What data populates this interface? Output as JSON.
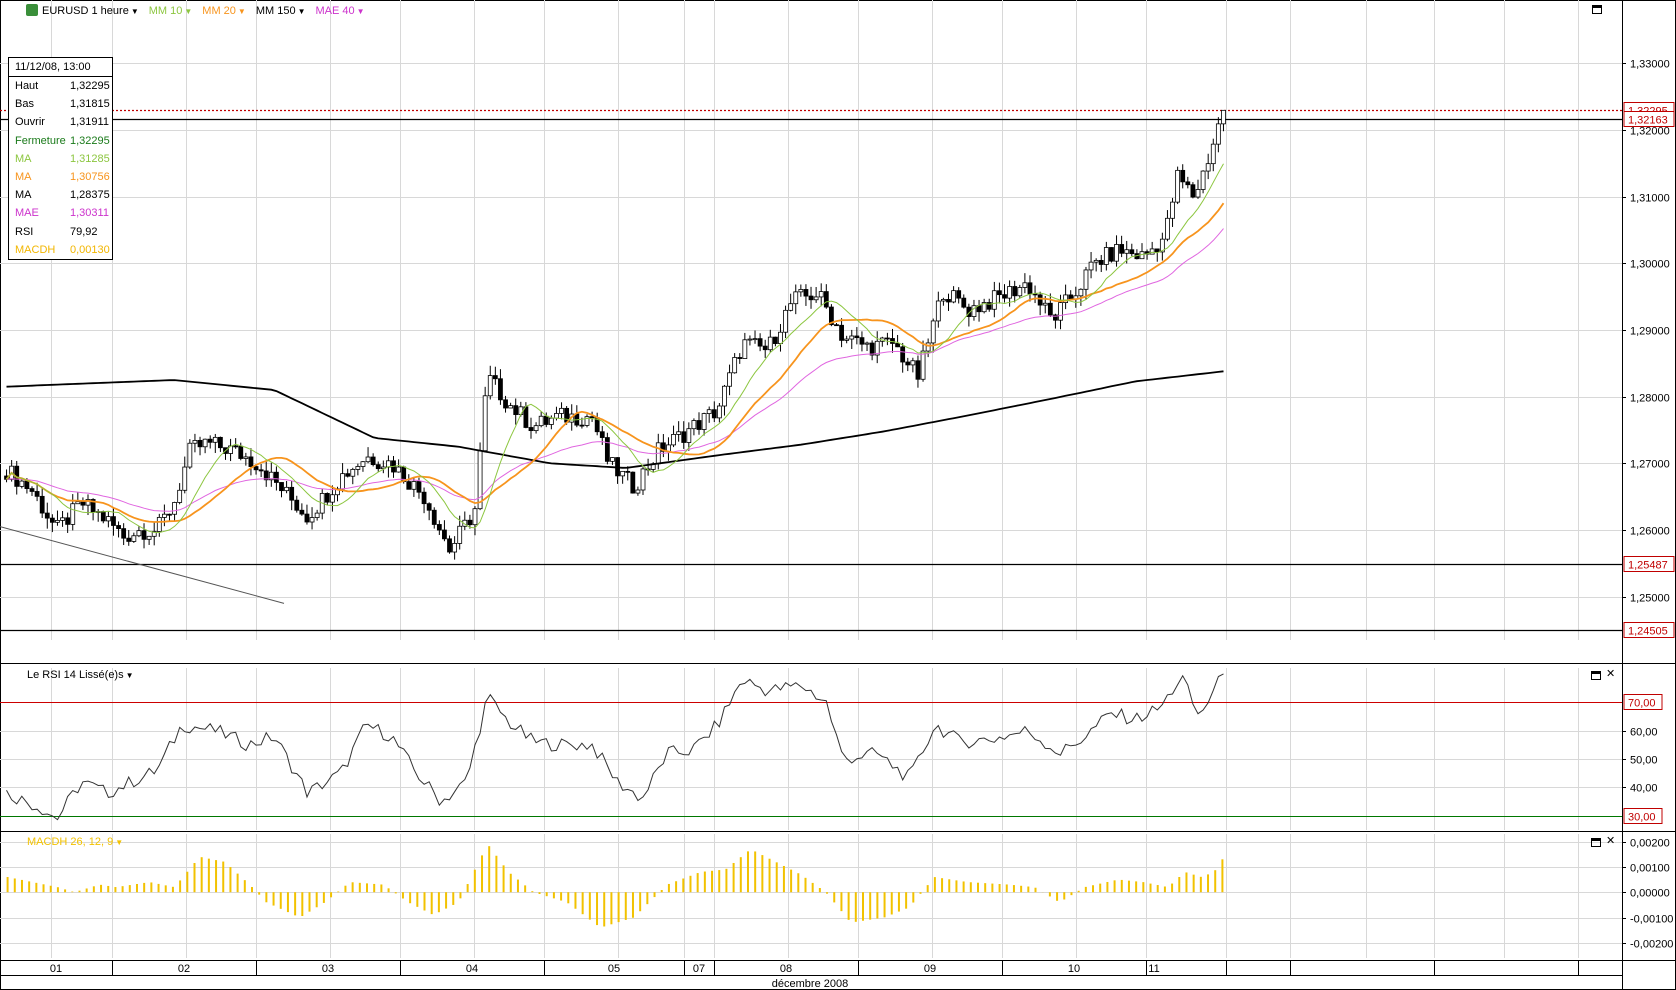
{
  "toolbar": {
    "symbol": "EURUSD 1 heure",
    "indicators": [
      {
        "label": "MM 10",
        "color": "#8cc63f"
      },
      {
        "label": "MM 20",
        "color": "#f7941d"
      },
      {
        "label": "MM 150",
        "color": "#000000"
      },
      {
        "label": "MAE 40",
        "color": "#cc33cc"
      }
    ]
  },
  "infobox": {
    "header": "11/12/08, 13:00",
    "rows": [
      {
        "k": "Haut",
        "v": "1,32295",
        "color": "#000000"
      },
      {
        "k": "Bas",
        "v": "1,31815",
        "color": "#000000"
      },
      {
        "k": "Ouvrir",
        "v": "1,31911",
        "color": "#000000"
      },
      {
        "k": "Fermeture",
        "v": "1,32295",
        "color": "#1a7a1a"
      },
      {
        "k": "MA",
        "v": "1,31285",
        "color": "#8cc63f"
      },
      {
        "k": "MA",
        "v": "1,30756",
        "color": "#f7941d"
      },
      {
        "k": "MA",
        "v": "1,28375",
        "color": "#000000"
      },
      {
        "k": "MAE",
        "v": "1,30311",
        "color": "#cc33cc"
      },
      {
        "k": "RSI",
        "v": "79,92",
        "color": "#000000"
      },
      {
        "k": "MACDH",
        "v": "0,00130",
        "color": "#f2b600"
      }
    ]
  },
  "rsi_panel": {
    "label": "Le RSI 14 Lissé(e)s"
  },
  "macd_panel": {
    "label": "MACDH 26, 12, 9"
  },
  "x_axis": {
    "day_labels": [
      "01",
      "02",
      "03",
      "04",
      "05",
      "07",
      "08",
      "09",
      "10",
      "11"
    ],
    "month_label": "décembre 2008"
  },
  "chart_data": [
    {
      "type": "candlestick",
      "title": "EURUSD 1 heure",
      "y_range": [
        1.2435,
        1.3395
      ],
      "y_ticks": [
        "1,33000",
        "1,32000",
        "1,31000",
        "1,30000",
        "1,29000",
        "1,28000",
        "1,27000",
        "1,26000",
        "1,25000"
      ],
      "price_flags": [
        {
          "label": "1,32295",
          "value": 1.32295,
          "style": "dotted",
          "color": "#c00000"
        },
        {
          "label": "1,32163",
          "value": 1.32163,
          "style": "solid",
          "color": "#c00000"
        },
        {
          "label": "1,25487",
          "value": 1.25487,
          "style": "solid",
          "color": "#c00000"
        },
        {
          "label": "1,24505",
          "value": 1.24505,
          "style": "solid",
          "color": "#c00000"
        }
      ],
      "overlays": [
        {
          "name": "MM 10",
          "color": "#8cc63f"
        },
        {
          "name": "MM 20",
          "color": "#f7941d"
        },
        {
          "name": "MM 150",
          "color": "#000000"
        },
        {
          "name": "MAE 40",
          "color": "#e066e0"
        }
      ],
      "trendline": {
        "from": [
          "01",
          1.2605
        ],
        "to": [
          "03",
          1.249
        ]
      },
      "anchors": [
        {
          "day": 0.0,
          "close": 1.269
        },
        {
          "day": 0.3,
          "close": 1.266
        },
        {
          "day": 0.6,
          "close": 1.26
        },
        {
          "day": 0.9,
          "close": 1.264
        },
        {
          "day": 1.2,
          "close": 1.2615
        },
        {
          "day": 1.4,
          "close": 1.259
        },
        {
          "day": 1.6,
          "close": 1.26
        },
        {
          "day": 1.8,
          "close": 1.26
        },
        {
          "day": 2.0,
          "close": 1.264
        },
        {
          "day": 2.2,
          "close": 1.272
        },
        {
          "day": 2.4,
          "close": 1.273
        },
        {
          "day": 2.7,
          "close": 1.272
        },
        {
          "day": 3.0,
          "close": 1.27
        },
        {
          "day": 3.3,
          "close": 1.266
        },
        {
          "day": 3.6,
          "close": 1.262
        },
        {
          "day": 4.0,
          "close": 1.268
        },
        {
          "day": 4.3,
          "close": 1.271
        },
        {
          "day": 4.6,
          "close": 1.27
        },
        {
          "day": 5.0,
          "close": 1.265
        },
        {
          "day": 5.3,
          "close": 1.257
        },
        {
          "day": 5.6,
          "close": 1.263
        },
        {
          "day": 5.75,
          "close": 1.283
        },
        {
          "day": 6.0,
          "close": 1.279
        },
        {
          "day": 6.3,
          "close": 1.2755
        },
        {
          "day": 6.6,
          "close": 1.277
        },
        {
          "day": 7.0,
          "close": 1.277
        },
        {
          "day": 7.2,
          "close": 1.27
        },
        {
          "day": 7.5,
          "close": 1.2665
        },
        {
          "day": 7.8,
          "close": 1.272
        },
        {
          "day": 8.1,
          "close": 1.2745
        },
        {
          "day": 8.5,
          "close": 1.278
        },
        {
          "day": 8.8,
          "close": 1.288
        },
        {
          "day": 9.1,
          "close": 1.287
        },
        {
          "day": 9.4,
          "close": 1.2945
        },
        {
          "day": 9.7,
          "close": 1.2955
        },
        {
          "day": 10.0,
          "close": 1.289
        },
        {
          "day": 10.3,
          "close": 1.2875
        },
        {
          "day": 10.6,
          "close": 1.288
        },
        {
          "day": 10.9,
          "close": 1.283
        },
        {
          "day": 11.2,
          "close": 1.296
        },
        {
          "day": 11.5,
          "close": 1.293
        },
        {
          "day": 11.8,
          "close": 1.2945
        },
        {
          "day": 12.2,
          "close": 1.297
        },
        {
          "day": 12.5,
          "close": 1.2915
        },
        {
          "day": 12.8,
          "close": 1.296
        },
        {
          "day": 13.0,
          "close": 1.3
        },
        {
          "day": 13.3,
          "close": 1.302
        },
        {
          "day": 13.6,
          "close": 1.301
        },
        {
          "day": 13.85,
          "close": 1.304
        },
        {
          "day": 14.0,
          "close": 1.313
        },
        {
          "day": 14.2,
          "close": 1.31
        },
        {
          "day": 14.35,
          "close": 1.315
        },
        {
          "day": 14.55,
          "close": 1.323
        }
      ]
    },
    {
      "type": "line",
      "title": "Le RSI 14 Lissé(e)s",
      "y_range": [
        25,
        82
      ],
      "y_ticks": [
        "60,00",
        "50,00",
        "40,00"
      ],
      "levels": [
        {
          "label": "70,00",
          "value": 70,
          "color": "#cc0000"
        },
        {
          "label": "30,00",
          "value": 30,
          "color": "#007700"
        }
      ],
      "last_value": 79.92,
      "anchors": [
        {
          "day": 0.0,
          "rsi": 38
        },
        {
          "day": 0.4,
          "rsi": 33
        },
        {
          "day": 0.6,
          "rsi": 29
        },
        {
          "day": 0.9,
          "rsi": 42
        },
        {
          "day": 1.2,
          "rsi": 38
        },
        {
          "day": 1.5,
          "rsi": 42
        },
        {
          "day": 1.8,
          "rsi": 46
        },
        {
          "day": 2.1,
          "rsi": 62
        },
        {
          "day": 2.5,
          "rsi": 60
        },
        {
          "day": 2.9,
          "rsi": 55
        },
        {
          "day": 3.2,
          "rsi": 58
        },
        {
          "day": 3.6,
          "rsi": 38
        },
        {
          "day": 4.0,
          "rsi": 45
        },
        {
          "day": 4.3,
          "rsi": 62
        },
        {
          "day": 4.6,
          "rsi": 58
        },
        {
          "day": 4.9,
          "rsi": 45
        },
        {
          "day": 5.2,
          "rsi": 35
        },
        {
          "day": 5.5,
          "rsi": 42
        },
        {
          "day": 5.75,
          "rsi": 72
        },
        {
          "day": 6.0,
          "rsi": 63
        },
        {
          "day": 6.3,
          "rsi": 56
        },
        {
          "day": 6.6,
          "rsi": 55
        },
        {
          "day": 7.0,
          "rsi": 55
        },
        {
          "day": 7.3,
          "rsi": 42
        },
        {
          "day": 7.6,
          "rsi": 36
        },
        {
          "day": 7.9,
          "rsi": 52
        },
        {
          "day": 8.2,
          "rsi": 53
        },
        {
          "day": 8.5,
          "rsi": 62
        },
        {
          "day": 8.8,
          "rsi": 78
        },
        {
          "day": 9.1,
          "rsi": 74
        },
        {
          "day": 9.5,
          "rsi": 76
        },
        {
          "day": 9.8,
          "rsi": 70
        },
        {
          "day": 10.0,
          "rsi": 50
        },
        {
          "day": 10.4,
          "rsi": 52
        },
        {
          "day": 10.8,
          "rsi": 43
        },
        {
          "day": 11.1,
          "rsi": 62
        },
        {
          "day": 11.4,
          "rsi": 56
        },
        {
          "day": 11.8,
          "rsi": 57
        },
        {
          "day": 12.2,
          "rsi": 60
        },
        {
          "day": 12.6,
          "rsi": 52
        },
        {
          "day": 12.9,
          "rsi": 58
        },
        {
          "day": 13.2,
          "rsi": 66
        },
        {
          "day": 13.5,
          "rsi": 64
        },
        {
          "day": 13.8,
          "rsi": 68
        },
        {
          "day": 14.05,
          "rsi": 79
        },
        {
          "day": 14.25,
          "rsi": 65
        },
        {
          "day": 14.4,
          "rsi": 72
        },
        {
          "day": 14.55,
          "rsi": 80
        }
      ]
    },
    {
      "type": "bar",
      "title": "MACDH 26, 12, 9",
      "y_range": [
        -0.0026,
        0.0023
      ],
      "y_ticks": [
        "0,00200",
        "0,00100",
        "0,00000",
        "-0,00100",
        "-0,00200"
      ],
      "color": "#f2c200",
      "last_value": 0.0013,
      "anchors": [
        {
          "day": 0.0,
          "macdh": 0.0006
        },
        {
          "day": 0.6,
          "macdh": 0.0002
        },
        {
          "day": 0.8,
          "macdh": 0.0
        },
        {
          "day": 1.1,
          "macdh": 0.0003
        },
        {
          "day": 1.3,
          "macdh": 0.0002
        },
        {
          "day": 1.7,
          "macdh": 0.0004
        },
        {
          "day": 2.0,
          "macdh": 0.0002
        },
        {
          "day": 2.3,
          "macdh": 0.0014
        },
        {
          "day": 2.6,
          "macdh": 0.0012
        },
        {
          "day": 2.9,
          "macdh": 0.0003
        },
        {
          "day": 3.1,
          "macdh": -0.0004
        },
        {
          "day": 3.5,
          "macdh": -0.001
        },
        {
          "day": 3.8,
          "macdh": -0.0004
        },
        {
          "day": 4.1,
          "macdh": 0.0004
        },
        {
          "day": 4.5,
          "macdh": 0.0003
        },
        {
          "day": 4.8,
          "macdh": -0.0004
        },
        {
          "day": 5.1,
          "macdh": -0.0009
        },
        {
          "day": 5.4,
          "macdh": -0.0004
        },
        {
          "day": 5.75,
          "macdh": 0.0019
        },
        {
          "day": 6.0,
          "macdh": 0.0008
        },
        {
          "day": 6.3,
          "macdh": 0.0
        },
        {
          "day": 6.7,
          "macdh": -0.0004
        },
        {
          "day": 7.1,
          "macdh": -0.0014
        },
        {
          "day": 7.5,
          "macdh": -0.001
        },
        {
          "day": 7.9,
          "macdh": 0.0003
        },
        {
          "day": 8.3,
          "macdh": 0.0008
        },
        {
          "day": 8.6,
          "macdh": 0.0009
        },
        {
          "day": 8.9,
          "macdh": 0.0017
        },
        {
          "day": 9.2,
          "macdh": 0.0012
        },
        {
          "day": 9.5,
          "macdh": 0.0007
        },
        {
          "day": 9.8,
          "macdh": 0.0
        },
        {
          "day": 10.1,
          "macdh": -0.0012
        },
        {
          "day": 10.5,
          "macdh": -0.001
        },
        {
          "day": 10.8,
          "macdh": -0.0006
        },
        {
          "day": 11.1,
          "macdh": 0.0006
        },
        {
          "day": 11.5,
          "macdh": 0.0004
        },
        {
          "day": 12.0,
          "macdh": 0.0003
        },
        {
          "day": 12.3,
          "macdh": 0.0002
        },
        {
          "day": 12.6,
          "macdh": -0.0004
        },
        {
          "day": 12.9,
          "macdh": 0.0002
        },
        {
          "day": 13.3,
          "macdh": 0.0005
        },
        {
          "day": 13.6,
          "macdh": 0.0004
        },
        {
          "day": 13.9,
          "macdh": 0.0002
        },
        {
          "day": 14.1,
          "macdh": 0.0008
        },
        {
          "day": 14.3,
          "macdh": 0.0006
        },
        {
          "day": 14.45,
          "macdh": 0.0008
        },
        {
          "day": 14.55,
          "macdh": 0.0013
        }
      ]
    }
  ]
}
